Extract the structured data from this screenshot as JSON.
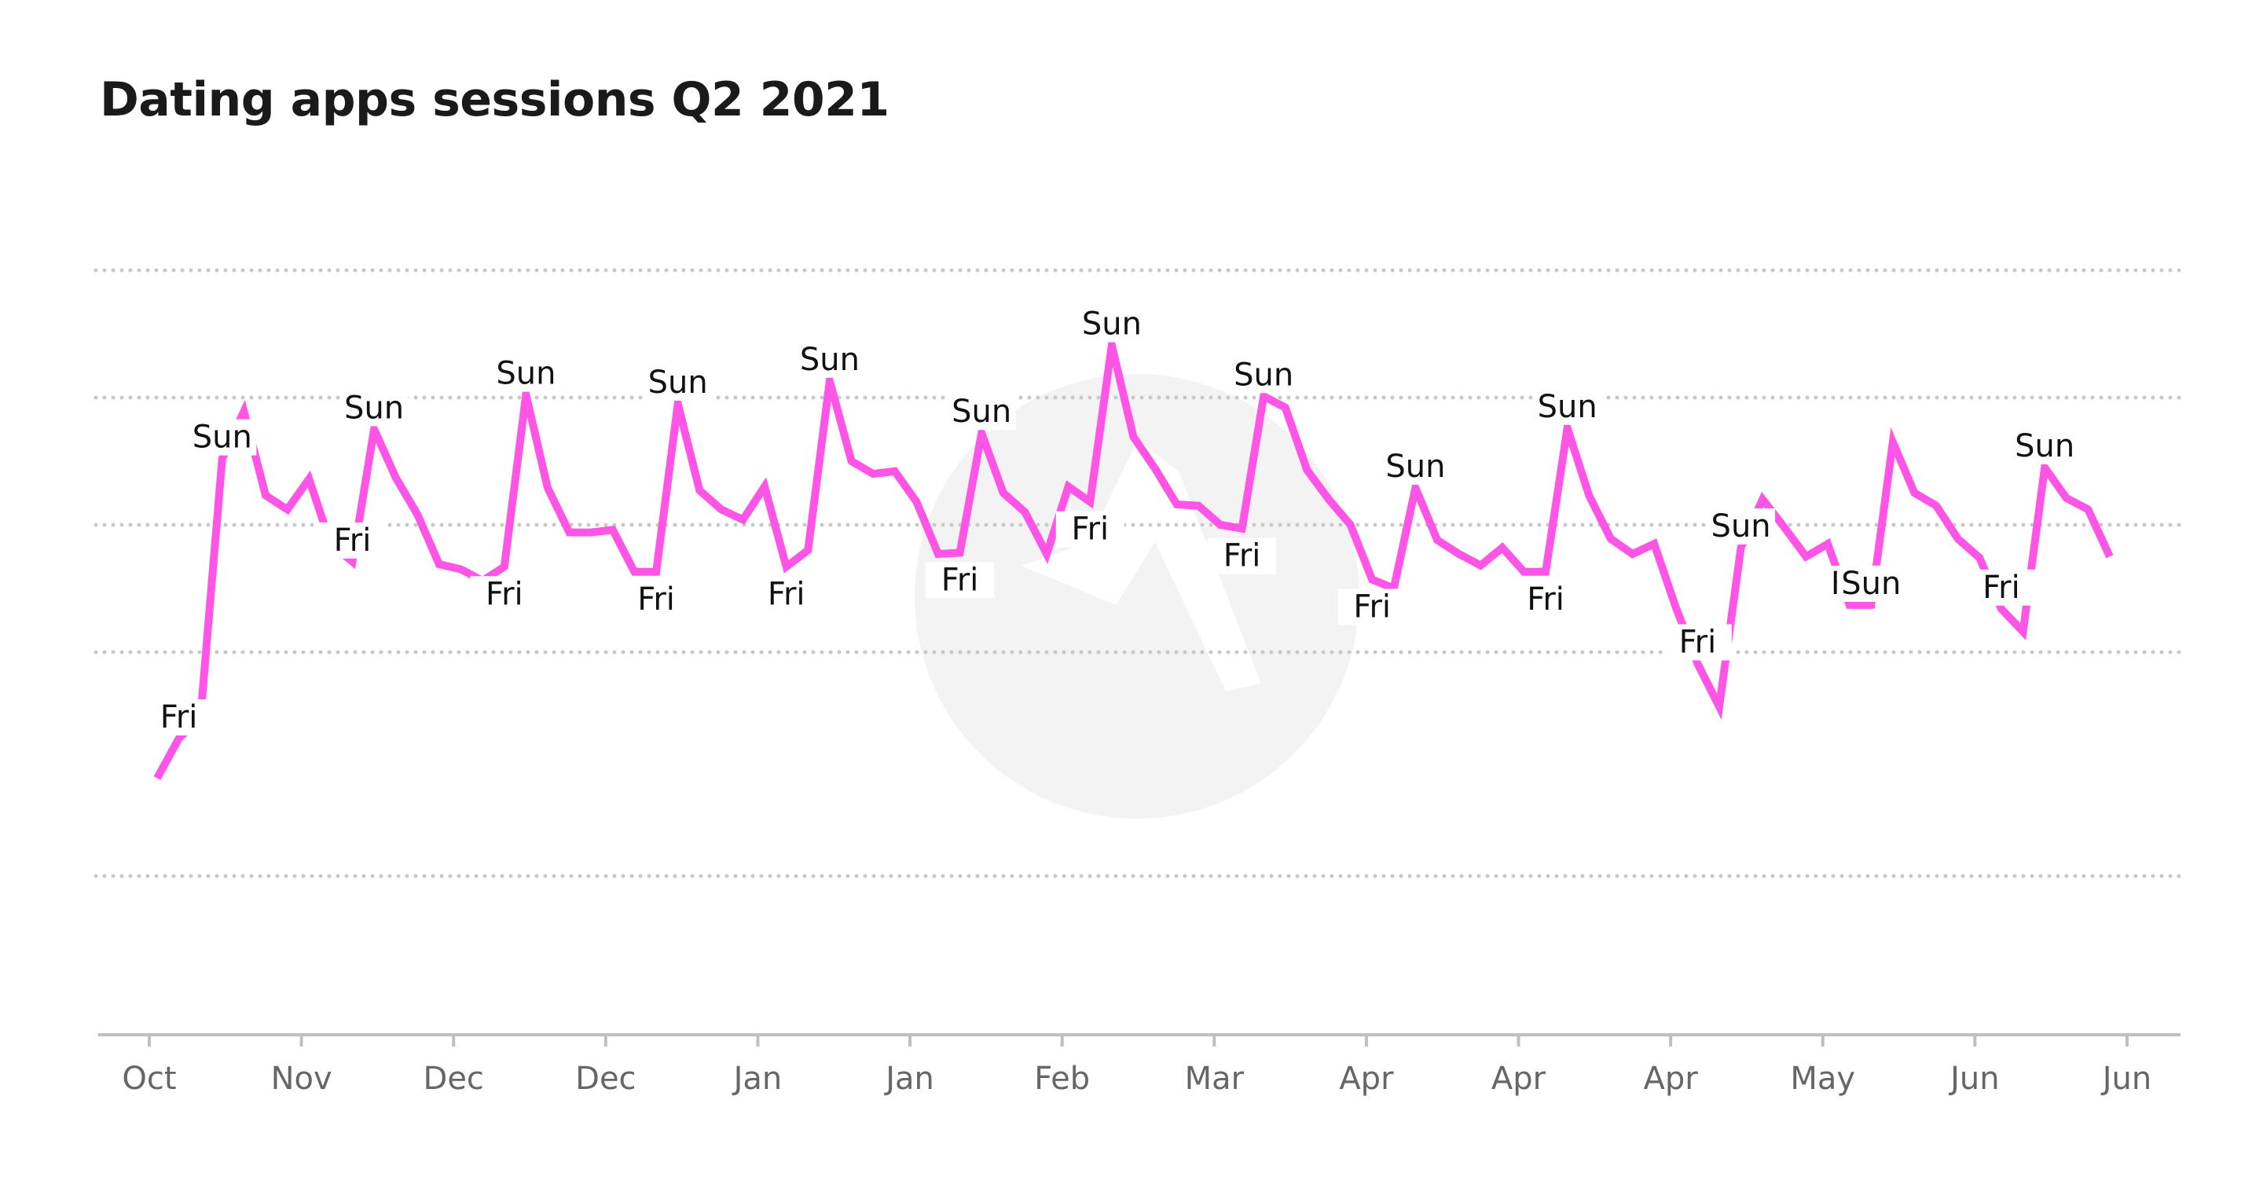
{
  "title": "Dating apps sessions Q2 2021",
  "colors": {
    "line": "#ff55e6",
    "grid": "#c8c8c8",
    "axis": "#bfbfbf",
    "text": "#1a1a1a",
    "tick_text": "#666666",
    "watermark": "#f3f3f3"
  },
  "watermark_icon": "logo-watermark-icon",
  "chart_data": {
    "type": "line",
    "title": "Dating apps sessions Q2 2021",
    "xlabel": "",
    "ylabel": "",
    "x_tick_labels": [
      "Oct",
      "Nov",
      "Dec",
      "Dec",
      "Jan",
      "Jan",
      "Feb",
      "Mar",
      "Apr",
      "Apr",
      "Apr",
      "May",
      "Jun",
      "Jun"
    ],
    "y_tick_labels": [],
    "grid": true,
    "legend": "none",
    "series": [
      {
        "values": [
          0.77,
          1.08,
          1.25,
          3.28,
          3.65,
          2.99,
          2.88,
          3.12,
          2.61,
          2.47,
          3.51,
          3.13,
          2.84,
          2.45,
          2.41,
          2.32,
          2.43,
          3.78,
          3.05,
          2.7,
          2.7,
          2.72,
          2.39,
          2.39,
          3.71,
          3.03,
          2.88,
          2.8,
          3.06,
          2.43,
          2.56,
          3.89,
          3.26,
          3.16,
          3.18,
          2.94,
          2.53,
          2.54,
          3.48,
          3.01,
          2.86,
          2.53,
          3.06,
          2.94,
          4.17,
          3.45,
          3.2,
          2.92,
          2.91,
          2.76,
          2.73,
          3.77,
          3.68,
          3.19,
          2.96,
          2.76,
          2.33,
          2.26,
          3.05,
          2.64,
          2.53,
          2.44,
          2.58,
          2.39,
          2.39,
          3.52,
          2.99,
          2.65,
          2.53,
          2.61,
          2.11,
          1.67,
          1.33,
          2.58,
          2.96,
          2.74,
          2.51,
          2.61,
          2.13,
          2.13,
          3.41,
          3.01,
          2.91,
          2.65,
          2.5,
          2.1,
          1.92,
          3.21,
          2.97,
          2.88,
          2.51
        ],
        "labels": [
          {
            "index": 1,
            "text": "Fri",
            "pos": "above"
          },
          {
            "index": 3,
            "text": "Sun",
            "pos": "above"
          },
          {
            "index": 9,
            "text": "Fri",
            "pos": "above"
          },
          {
            "index": 10,
            "text": "Sun",
            "pos": "above"
          },
          {
            "index": 16,
            "text": "Fri",
            "pos": "below"
          },
          {
            "index": 17,
            "text": "Sun",
            "pos": "above"
          },
          {
            "index": 23,
            "text": "Fri",
            "pos": "below"
          },
          {
            "index": 24,
            "text": "Sun",
            "pos": "above"
          },
          {
            "index": 29,
            "text": "Fri",
            "pos": "below"
          },
          {
            "index": 31,
            "text": "Sun",
            "pos": "above"
          },
          {
            "index": 37,
            "text": "Fri",
            "pos": "below"
          },
          {
            "index": 38,
            "text": "Sun",
            "pos": "above"
          },
          {
            "index": 43,
            "text": "Fri",
            "pos": "below"
          },
          {
            "index": 44,
            "text": "Sun",
            "pos": "above"
          },
          {
            "index": 50,
            "text": "Fri",
            "pos": "below"
          },
          {
            "index": 51,
            "text": "Sun",
            "pos": "above"
          },
          {
            "index": 56,
            "text": "Fri",
            "pos": "below"
          },
          {
            "index": 58,
            "text": "Sun",
            "pos": "above"
          },
          {
            "index": 64,
            "text": "Fri",
            "pos": "below"
          },
          {
            "index": 65,
            "text": "Sun",
            "pos": "above"
          },
          {
            "index": 71,
            "text": "Fri",
            "pos": "above"
          },
          {
            "index": 73,
            "text": "Sun",
            "pos": "above"
          },
          {
            "index": 78,
            "text": "Fri",
            "pos": "above"
          },
          {
            "index": 79,
            "text": "Sun",
            "pos": "above"
          },
          {
            "index": 85,
            "text": "Fri",
            "pos": "above"
          },
          {
            "index": 87,
            "text": "Sun",
            "pos": "above"
          }
        ]
      }
    ]
  }
}
